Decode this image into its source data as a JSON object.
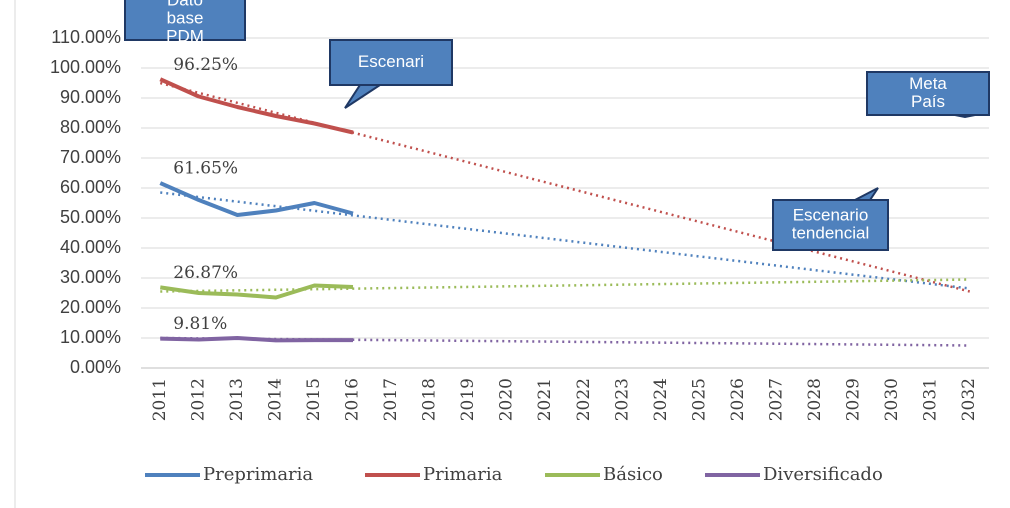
{
  "chart_data": {
    "type": "line",
    "categories": [
      "2011",
      "2012",
      "2013",
      "2014",
      "2015",
      "2016",
      "2017",
      "2018",
      "2019",
      "2020",
      "2021",
      "2022",
      "2023",
      "2024",
      "2025",
      "2026",
      "2027",
      "2028",
      "2029",
      "2030",
      "2031",
      "2032"
    ],
    "ylim": [
      0,
      110
    ],
    "yticks": [
      {
        "value": 0,
        "label": "0.00%"
      },
      {
        "value": 10,
        "label": "10.00%"
      },
      {
        "value": 20,
        "label": "20.00%"
      },
      {
        "value": 30,
        "label": "30.00%"
      },
      {
        "value": 40,
        "label": "40.00%"
      },
      {
        "value": 50,
        "label": "50.00%"
      },
      {
        "value": 60,
        "label": "60.00%"
      },
      {
        "value": 70,
        "label": "70.00%"
      },
      {
        "value": 80,
        "label": "80.00%"
      },
      {
        "value": 90,
        "label": "90.00%"
      },
      {
        "value": 100,
        "label": "100.00%"
      },
      {
        "value": 110,
        "label": "110.00%"
      }
    ],
    "grid": true,
    "legend": "bottom",
    "series": [
      {
        "name": "Preprimaria",
        "color": "#4f81bd",
        "values": [
          61.65,
          56,
          51,
          52.5,
          55,
          51.5,
          null,
          null,
          null,
          null,
          null,
          null,
          null,
          null,
          null,
          null,
          null,
          null,
          null,
          null,
          null,
          null
        ],
        "value_labels": [
          "61.65%",
          null,
          null,
          null,
          null,
          null,
          null,
          null,
          null,
          null,
          null,
          null,
          null,
          null,
          null,
          null,
          null,
          null,
          null,
          null,
          null,
          null
        ],
        "trend": [
          58.5,
          26.5
        ]
      },
      {
        "name": "Primaria",
        "color": "#c0504d",
        "values": [
          96.25,
          90.5,
          87,
          84,
          81.5,
          78.5,
          null,
          null,
          null,
          null,
          null,
          null,
          null,
          null,
          null,
          null,
          null,
          null,
          null,
          null,
          null,
          null
        ],
        "value_labels": [
          "96.25%",
          null,
          null,
          null,
          null,
          null,
          null,
          null,
          null,
          null,
          null,
          null,
          null,
          null,
          null,
          null,
          null,
          null,
          null,
          null,
          null,
          null
        ],
        "trend": [
          95,
          25.5
        ]
      },
      {
        "name": "Básico",
        "color": "#9bbb59",
        "values": [
          26.87,
          25,
          24.5,
          23.5,
          27.5,
          27,
          null,
          null,
          null,
          null,
          null,
          null,
          null,
          null,
          null,
          null,
          null,
          null,
          null,
          null,
          null,
          null
        ],
        "value_labels": [
          "26.87%",
          null,
          null,
          null,
          null,
          null,
          null,
          null,
          null,
          null,
          null,
          null,
          null,
          null,
          null,
          null,
          null,
          null,
          null,
          null,
          null,
          null
        ],
        "trend": [
          25.5,
          29.5
        ]
      },
      {
        "name": "Diversificado",
        "color": "#8064a2",
        "values": [
          9.81,
          9.5,
          10,
          9.2,
          9.3,
          9.3,
          null,
          null,
          null,
          null,
          null,
          null,
          null,
          null,
          null,
          null,
          null,
          null,
          null,
          null,
          null,
          null
        ],
        "value_labels": [
          "9.81%",
          null,
          null,
          null,
          null,
          null,
          null,
          null,
          null,
          null,
          null,
          null,
          null,
          null,
          null,
          null,
          null,
          null,
          null,
          null,
          null,
          null
        ],
        "trend": [
          10,
          7.5
        ]
      }
    ],
    "annotations": [
      {
        "lines": [
          "Dato",
          "base",
          "PDM"
        ]
      },
      {
        "lines": [
          "Escenari"
        ]
      },
      {
        "lines": [
          "Meta",
          "País"
        ]
      },
      {
        "lines": [
          "Escenario",
          "tendencial"
        ]
      }
    ]
  }
}
